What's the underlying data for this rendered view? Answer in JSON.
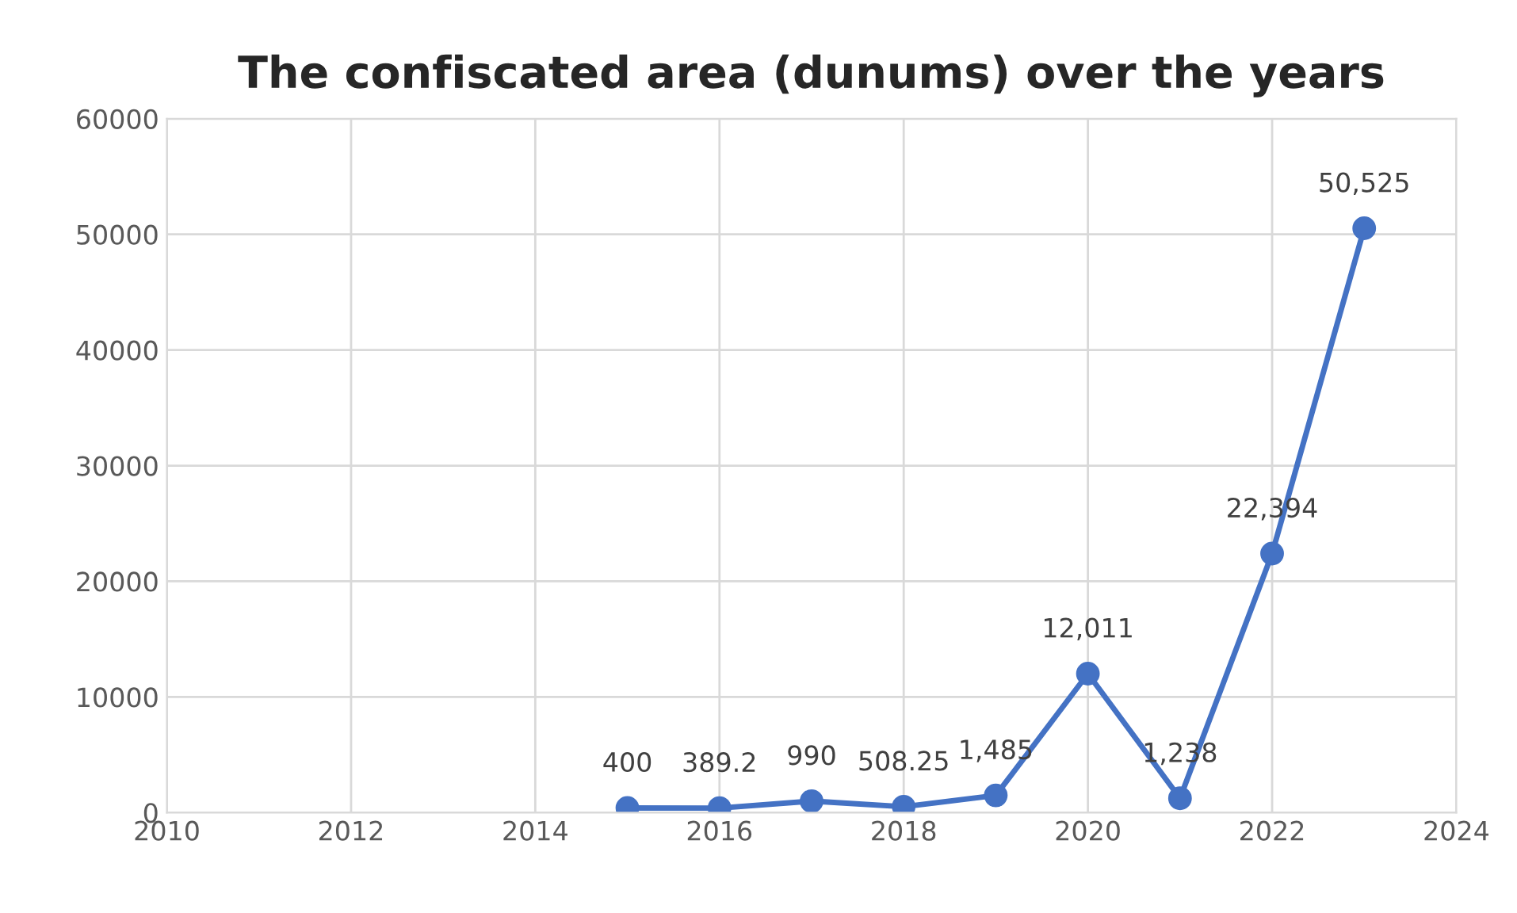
{
  "chart_data": {
    "type": "line",
    "title": "The confiscated area (dunums) over the years",
    "x": [
      2015,
      2016,
      2017,
      2018,
      2019,
      2020,
      2021,
      2022,
      2023
    ],
    "series": [
      {
        "color": "#4472c4",
        "values": [
          400,
          389.2,
          990,
          508.25,
          1485,
          12011,
          1238,
          22394,
          50525
        ],
        "value_labels": [
          "400",
          "389.2",
          "990",
          "508.25",
          "1,485",
          "12,011",
          "1,238",
          "22,394",
          "50,525"
        ]
      }
    ],
    "xlim": [
      2010,
      2024
    ],
    "xticks": [
      2010,
      2012,
      2014,
      2016,
      2018,
      2020,
      2022,
      2024
    ],
    "ylim": [
      0,
      60000
    ],
    "yticks": [
      0,
      10000,
      20000,
      30000,
      40000,
      50000,
      60000
    ],
    "grid": true,
    "marker": "circle",
    "line_style": "solid",
    "legend": false
  }
}
